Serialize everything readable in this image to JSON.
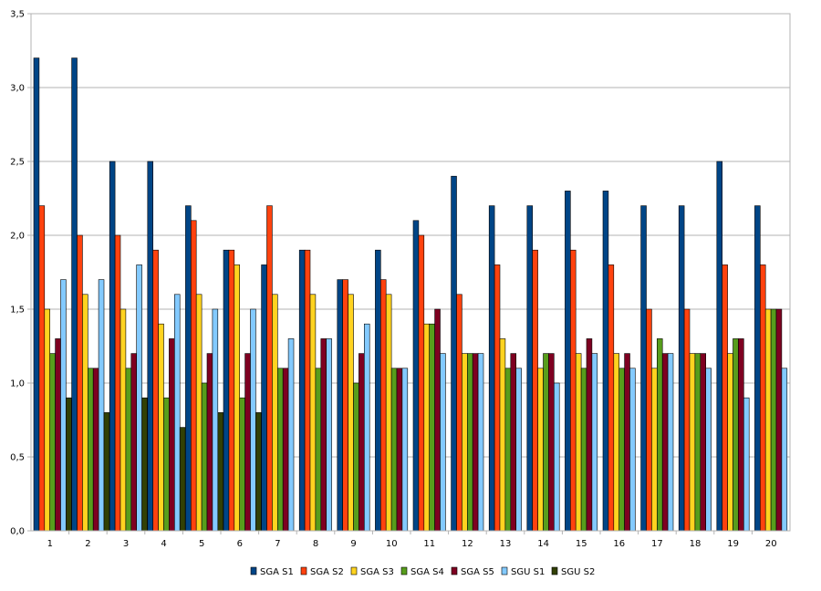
{
  "chart_data": {
    "type": "bar",
    "categories": [
      "1",
      "2",
      "3",
      "4",
      "5",
      "6",
      "7",
      "8",
      "9",
      "10",
      "11",
      "12",
      "13",
      "14",
      "15",
      "16",
      "17",
      "18",
      "19",
      "20"
    ],
    "y_ticks": [
      "0,0",
      "0,5",
      "1,0",
      "1,5",
      "2,0",
      "2,5",
      "3,0",
      "3,5"
    ],
    "ylim": [
      0,
      3.5
    ],
    "grid": true,
    "legend_position": "bottom",
    "series": [
      {
        "name": "SGA S1",
        "color": "#004586",
        "values": [
          3.2,
          3.2,
          2.5,
          2.5,
          2.2,
          1.9,
          1.8,
          1.9,
          1.7,
          1.9,
          2.1,
          2.4,
          2.2,
          2.2,
          2.3,
          2.3,
          2.2,
          2.2,
          2.5,
          2.2
        ]
      },
      {
        "name": "SGA S2",
        "color": "#ff420e",
        "values": [
          2.2,
          2.0,
          2.0,
          1.9,
          2.1,
          1.9,
          2.2,
          1.9,
          1.7,
          1.7,
          2.0,
          1.6,
          1.8,
          1.9,
          1.9,
          1.8,
          1.5,
          1.5,
          1.8,
          1.8
        ]
      },
      {
        "name": "SGA S3",
        "color": "#ffd320",
        "values": [
          1.5,
          1.6,
          1.5,
          1.4,
          1.6,
          1.8,
          1.6,
          1.6,
          1.6,
          1.6,
          1.4,
          1.2,
          1.3,
          1.1,
          1.2,
          1.2,
          1.1,
          1.2,
          1.2,
          1.5
        ]
      },
      {
        "name": "SGA S4",
        "color": "#579d1c",
        "values": [
          1.2,
          1.1,
          1.1,
          0.9,
          1.0,
          0.9,
          1.1,
          1.1,
          1.0,
          1.1,
          1.4,
          1.2,
          1.1,
          1.2,
          1.1,
          1.1,
          1.3,
          1.2,
          1.3,
          1.5
        ]
      },
      {
        "name": "SGA S5",
        "color": "#7e0021",
        "values": [
          1.3,
          1.1,
          1.2,
          1.3,
          1.2,
          1.2,
          1.1,
          1.3,
          1.2,
          1.1,
          1.5,
          1.2,
          1.2,
          1.2,
          1.3,
          1.2,
          1.2,
          1.2,
          1.3,
          1.5
        ]
      },
      {
        "name": "SGU S1",
        "color": "#83caff",
        "values": [
          1.7,
          1.7,
          1.8,
          1.6,
          1.5,
          1.5,
          1.3,
          1.3,
          1.4,
          1.1,
          1.2,
          1.2,
          1.1,
          1.0,
          1.2,
          1.1,
          1.2,
          1.1,
          0.9,
          1.1
        ]
      },
      {
        "name": "SGU S2",
        "color": "#314004",
        "values": [
          0.9,
          0.8,
          0.9,
          0.7,
          0.8,
          0.8,
          0,
          0,
          0,
          0,
          0,
          0,
          0,
          0,
          0,
          0,
          0,
          0,
          0,
          0
        ]
      }
    ]
  }
}
